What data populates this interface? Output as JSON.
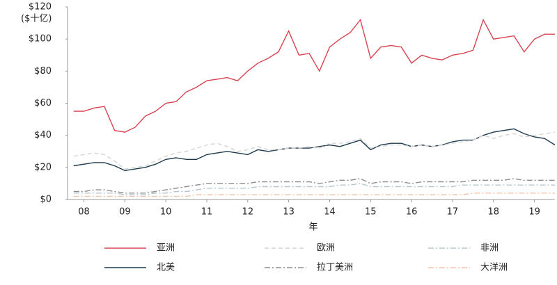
{
  "chart_data": {
    "type": "line",
    "xlabel": "年",
    "ylabel": "($十亿)",
    "x": [
      2007.75,
      2008,
      2008.25,
      2008.5,
      2008.75,
      2009,
      2009.25,
      2009.5,
      2009.75,
      2010,
      2010.25,
      2010.5,
      2010.75,
      2011,
      2011.25,
      2011.5,
      2011.75,
      2012,
      2012.25,
      2012.5,
      2012.75,
      2013,
      2013.25,
      2013.5,
      2013.75,
      2014,
      2014.25,
      2014.5,
      2014.75,
      2015,
      2015.25,
      2015.5,
      2015.75,
      2016,
      2016.25,
      2016.5,
      2016.75,
      2017,
      2017.25,
      2017.5,
      2017.75,
      2018,
      2018.25,
      2018.5,
      2018.75,
      2019,
      2019.25,
      2019.5
    ],
    "xlim": [
      2007.6,
      2019.5
    ],
    "xticks": [
      {
        "value": 2008,
        "label": "08"
      },
      {
        "value": 2009,
        "label": "09"
      },
      {
        "value": 2010,
        "label": "10"
      },
      {
        "value": 2011,
        "label": "11"
      },
      {
        "value": 2012,
        "label": "12"
      },
      {
        "value": 2013,
        "label": "13"
      },
      {
        "value": 2014,
        "label": "14"
      },
      {
        "value": 2015,
        "label": "15"
      },
      {
        "value": 2016,
        "label": "16"
      },
      {
        "value": 2017,
        "label": "17"
      },
      {
        "value": 2018,
        "label": "18"
      },
      {
        "value": 2019,
        "label": "19"
      }
    ],
    "ylim": [
      0,
      120
    ],
    "yticks": [
      {
        "value": 0,
        "label": "$0"
      },
      {
        "value": 20,
        "label": "$20"
      },
      {
        "value": 40,
        "label": "$40"
      },
      {
        "value": 60,
        "label": "$60"
      },
      {
        "value": 80,
        "label": "$80"
      },
      {
        "value": 100,
        "label": "$100"
      },
      {
        "value": 120,
        "label": "$120"
      }
    ],
    "legend": "bottom",
    "series": [
      {
        "name": "亚洲",
        "color": "#d9434f",
        "dash": "solid",
        "values": [
          55,
          55,
          57,
          58,
          43,
          42,
          45,
          52,
          55,
          60,
          61,
          67,
          70,
          74,
          75,
          76,
          74,
          80,
          85,
          88,
          92,
          105,
          90,
          91,
          80,
          95,
          100,
          104,
          112,
          88,
          95,
          96,
          95,
          85,
          90,
          88,
          87,
          90,
          91,
          93,
          112,
          100,
          101,
          102,
          92,
          100,
          103,
          103
        ]
      },
      {
        "name": "欧洲",
        "color": "#d4d4d4",
        "dash": "dashed",
        "values": [
          27,
          28,
          29,
          28,
          24,
          19,
          20,
          21,
          24,
          27,
          29,
          30,
          32,
          34,
          35,
          33,
          30,
          31,
          33,
          31,
          31,
          32,
          32,
          33,
          32,
          35,
          35,
          36,
          38,
          32,
          33,
          34,
          34,
          33,
          34,
          33,
          34,
          35,
          36,
          37,
          40,
          38,
          40,
          41,
          39,
          40,
          41,
          42
        ]
      },
      {
        "name": "非洲",
        "color": "#b3c6d0",
        "dash": "dashdot",
        "values": [
          4,
          4,
          4,
          4,
          4,
          3,
          3,
          3,
          4,
          4,
          5,
          5,
          6,
          7,
          7,
          7,
          7,
          7,
          8,
          8,
          8,
          8,
          8,
          8,
          8,
          8,
          9,
          9,
          10,
          8,
          8,
          8,
          8,
          8,
          8,
          8,
          8,
          8,
          9,
          9,
          9,
          9,
          9,
          9,
          9,
          9,
          9,
          9
        ]
      },
      {
        "name": "北美",
        "color": "#1d3a4e",
        "dash": "solid",
        "values": [
          21,
          22,
          23,
          23,
          21,
          18,
          19,
          20,
          22,
          25,
          26,
          25,
          25,
          28,
          29,
          30,
          29,
          28,
          31,
          30,
          31,
          32,
          32,
          32,
          33,
          34,
          33,
          35,
          37,
          31,
          34,
          35,
          35,
          33,
          34,
          33,
          34,
          36,
          37,
          37,
          40,
          42,
          43,
          44,
          41,
          39,
          38,
          34
        ]
      },
      {
        "name": "拉丁美洲",
        "color": "#8c8c8c",
        "dash": "dashdot",
        "values": [
          5,
          5,
          6,
          6,
          5,
          4,
          4,
          4,
          5,
          6,
          7,
          8,
          9,
          10,
          10,
          10,
          10,
          10,
          11,
          11,
          11,
          11,
          11,
          11,
          10,
          11,
          12,
          12,
          13,
          10,
          11,
          11,
          11,
          10,
          11,
          11,
          11,
          11,
          11,
          12,
          12,
          12,
          12,
          13,
          12,
          12,
          12,
          12
        ]
      },
      {
        "name": "大洋洲",
        "color": "#f0c4a8",
        "dash": "dashdot",
        "values": [
          2,
          2,
          2,
          2,
          2,
          2,
          2,
          2,
          2,
          2,
          2,
          2,
          3,
          3,
          3,
          3,
          3,
          3,
          3,
          3,
          3,
          3,
          3,
          3,
          3,
          3,
          3,
          3,
          3,
          3,
          3,
          3,
          3,
          3,
          3,
          3,
          3,
          3,
          3,
          4,
          4,
          4,
          4,
          4,
          4,
          4,
          4,
          4
        ]
      }
    ]
  }
}
